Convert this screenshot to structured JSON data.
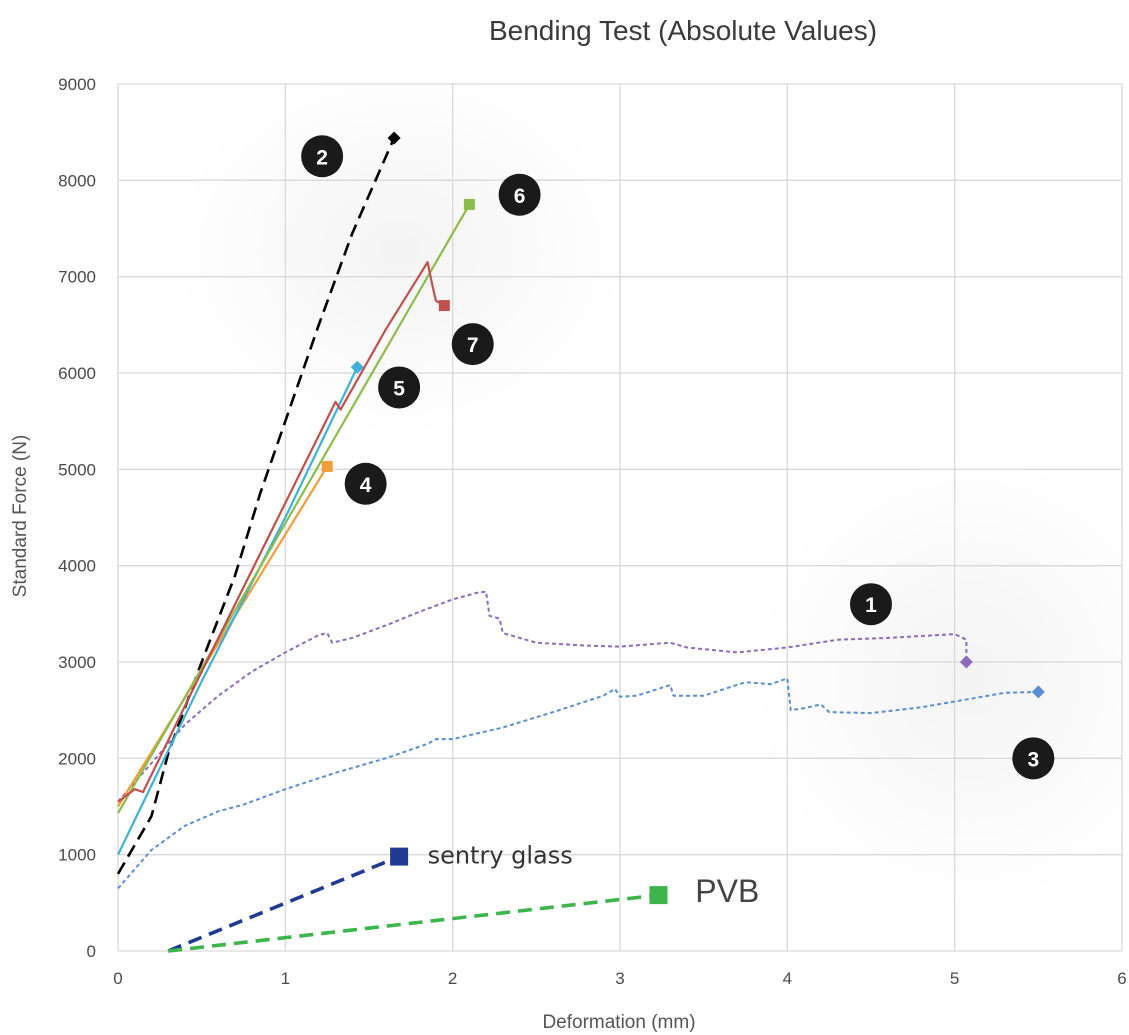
{
  "chart_data": {
    "type": "line",
    "title": "Bending Test (Absolute Values)",
    "xlabel": "Deformation (mm)",
    "ylabel": "Standard Force (N)",
    "xlim": [
      0,
      6
    ],
    "ylim": [
      0,
      9000
    ],
    "x_ticks": [
      "0",
      "1",
      "2",
      "3",
      "4",
      "5",
      "6"
    ],
    "y_ticks": [
      "0",
      "1000",
      "2000",
      "3000",
      "4000",
      "5000",
      "6000",
      "7000",
      "8000",
      "9000"
    ],
    "grid": true,
    "series": [
      {
        "name": "1",
        "color": "#8e6bbf",
        "style": "dotted",
        "marker": "diamond",
        "points": [
          [
            0,
            1550
          ],
          [
            0.2,
            1950
          ],
          [
            0.4,
            2350
          ],
          [
            0.6,
            2650
          ],
          [
            0.8,
            2900
          ],
          [
            1.0,
            3100
          ],
          [
            1.2,
            3280
          ],
          [
            1.25,
            3300
          ],
          [
            1.28,
            3200
          ],
          [
            1.4,
            3250
          ],
          [
            1.6,
            3380
          ],
          [
            1.8,
            3520
          ],
          [
            2.0,
            3650
          ],
          [
            2.15,
            3720
          ],
          [
            2.2,
            3730
          ],
          [
            2.22,
            3480
          ],
          [
            2.28,
            3450
          ],
          [
            2.3,
            3300
          ],
          [
            2.5,
            3200
          ],
          [
            2.8,
            3170
          ],
          [
            3.0,
            3160
          ],
          [
            3.3,
            3200
          ],
          [
            3.4,
            3150
          ],
          [
            3.7,
            3100
          ],
          [
            4.0,
            3150
          ],
          [
            4.3,
            3230
          ],
          [
            4.6,
            3250
          ],
          [
            4.8,
            3270
          ],
          [
            5.0,
            3290
          ],
          [
            5.07,
            3230
          ],
          [
            5.07,
            3000
          ]
        ]
      },
      {
        "name": "2",
        "color": "#000000",
        "style": "dashed",
        "marker": "diamond",
        "points": [
          [
            0,
            800
          ],
          [
            0.2,
            1400
          ],
          [
            0.3,
            2050
          ],
          [
            0.5,
            3000
          ],
          [
            0.7,
            3900
          ],
          [
            0.85,
            4750
          ],
          [
            1.0,
            5500
          ],
          [
            1.2,
            6500
          ],
          [
            1.4,
            7450
          ],
          [
            1.65,
            8440
          ]
        ]
      },
      {
        "name": "3",
        "color": "#5b8fd3",
        "style": "dotted",
        "marker": "diamond",
        "points": [
          [
            0,
            650
          ],
          [
            0.2,
            1050
          ],
          [
            0.4,
            1300
          ],
          [
            0.6,
            1450
          ],
          [
            0.75,
            1520
          ],
          [
            1.0,
            1680
          ],
          [
            1.3,
            1850
          ],
          [
            1.6,
            2000
          ],
          [
            1.85,
            2150
          ],
          [
            1.9,
            2200
          ],
          [
            2.0,
            2200
          ],
          [
            2.3,
            2320
          ],
          [
            2.6,
            2480
          ],
          [
            2.9,
            2650
          ],
          [
            2.97,
            2720
          ],
          [
            3.0,
            2640
          ],
          [
            3.1,
            2650
          ],
          [
            3.3,
            2760
          ],
          [
            3.32,
            2650
          ],
          [
            3.5,
            2650
          ],
          [
            3.75,
            2790
          ],
          [
            3.9,
            2770
          ],
          [
            4.0,
            2830
          ],
          [
            4.02,
            2500
          ],
          [
            4.1,
            2520
          ],
          [
            4.2,
            2560
          ],
          [
            4.25,
            2480
          ],
          [
            4.5,
            2470
          ],
          [
            4.8,
            2530
          ],
          [
            5.1,
            2620
          ],
          [
            5.3,
            2680
          ],
          [
            5.5,
            2690
          ]
        ]
      },
      {
        "name": "4",
        "color": "#f39c3c",
        "style": "solid",
        "marker": "square",
        "points": [
          [
            0,
            1500
          ],
          [
            1.25,
            5030
          ]
        ]
      },
      {
        "name": "5",
        "color": "#3fb1d8",
        "style": "solid",
        "marker": "diamond",
        "points": [
          [
            0,
            1000
          ],
          [
            0.5,
            2800
          ],
          [
            1.0,
            4500
          ],
          [
            1.43,
            6060
          ]
        ]
      },
      {
        "name": "6",
        "color": "#8cbd4a",
        "style": "solid",
        "marker": "square",
        "points": [
          [
            0,
            1430
          ],
          [
            2.1,
            7750
          ]
        ]
      },
      {
        "name": "7",
        "color": "#c0504d",
        "style": "solid",
        "marker": "square",
        "points": [
          [
            0,
            1550
          ],
          [
            0.1,
            1680
          ],
          [
            0.15,
            1650
          ],
          [
            0.5,
            2900
          ],
          [
            1.0,
            4650
          ],
          [
            1.3,
            5700
          ],
          [
            1.33,
            5620
          ],
          [
            1.6,
            6450
          ],
          [
            1.85,
            7150
          ],
          [
            1.88,
            6900
          ],
          [
            1.9,
            6750
          ],
          [
            1.95,
            6700
          ]
        ]
      },
      {
        "name": "sentry glass",
        "color": "#1f3a93",
        "style": "dashed",
        "marker": "square",
        "points": [
          [
            0.3,
            0
          ],
          [
            1.68,
            980
          ]
        ]
      },
      {
        "name": "PVB",
        "color": "#3cb54a",
        "style": "dashed",
        "marker": "square",
        "points": [
          [
            0.3,
            0
          ],
          [
            3.23,
            580
          ]
        ]
      }
    ],
    "badges": [
      {
        "label": "2",
        "x": 1.22,
        "y": 8250
      },
      {
        "label": "6",
        "x": 2.4,
        "y": 7850
      },
      {
        "label": "7",
        "x": 2.12,
        "y": 6300
      },
      {
        "label": "5",
        "x": 1.68,
        "y": 5850
      },
      {
        "label": "4",
        "x": 1.48,
        "y": 4850
      },
      {
        "label": "1",
        "x": 4.5,
        "y": 3600
      },
      {
        "label": "3",
        "x": 5.47,
        "y": 2000
      }
    ],
    "legend": [
      {
        "label": "sentry glass",
        "x": 1.85,
        "y": 1000
      },
      {
        "label": "PVB",
        "x": 3.45,
        "y": 600
      }
    ]
  }
}
